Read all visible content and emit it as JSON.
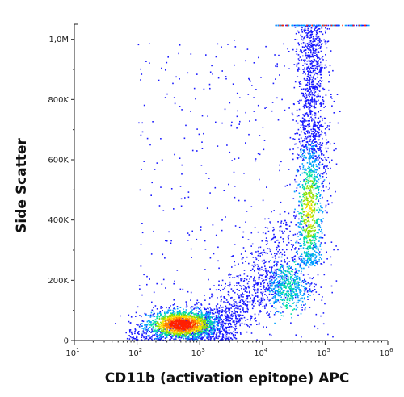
{
  "chart_data": {
    "type": "scatter",
    "style": "flow cytometry density dot plot",
    "xlabel": "CD11b (activation epitope) APC",
    "ylabel": "Side Scatter",
    "xscale": "log",
    "xlim": [
      10,
      1000000
    ],
    "ylim": [
      0,
      1050000
    ],
    "x_ticks": [
      {
        "value": 10,
        "base": "10",
        "exp": "1"
      },
      {
        "value": 100,
        "base": "10",
        "exp": "2"
      },
      {
        "value": 1000,
        "base": "10",
        "exp": "3"
      },
      {
        "value": 10000,
        "base": "10",
        "exp": "4"
      },
      {
        "value": 100000,
        "base": "10",
        "exp": "5"
      },
      {
        "value": 1000000,
        "base": "10",
        "exp": "6"
      }
    ],
    "y_ticks": [
      {
        "value": 0,
        "label": "0"
      },
      {
        "value": 200000,
        "label": "200K"
      },
      {
        "value": 400000,
        "label": "400K"
      },
      {
        "value": 600000,
        "label": "600K"
      },
      {
        "value": 800000,
        "label": "800K"
      },
      {
        "value": 1000000,
        "label": "1,0M"
      }
    ],
    "populations": [
      {
        "center_x": 500,
        "center_y": 55000,
        "spread_log_x": 0.28,
        "spread_y": 25000,
        "density": "high"
      },
      {
        "center_x": 55000,
        "center_y": 430000,
        "spread_log_x": 0.12,
        "spread_y": 120000,
        "density": "medium"
      },
      {
        "center_x": 25000,
        "center_y": 180000,
        "spread_log_x": 0.2,
        "spread_y": 40000,
        "density": "medium"
      }
    ],
    "density_colors": [
      "#1a1aff",
      "#00a0ff",
      "#00e0a0",
      "#8ee000",
      "#ffe000",
      "#ff8000",
      "#ff2000"
    ],
    "grid": false,
    "legend": "none"
  }
}
